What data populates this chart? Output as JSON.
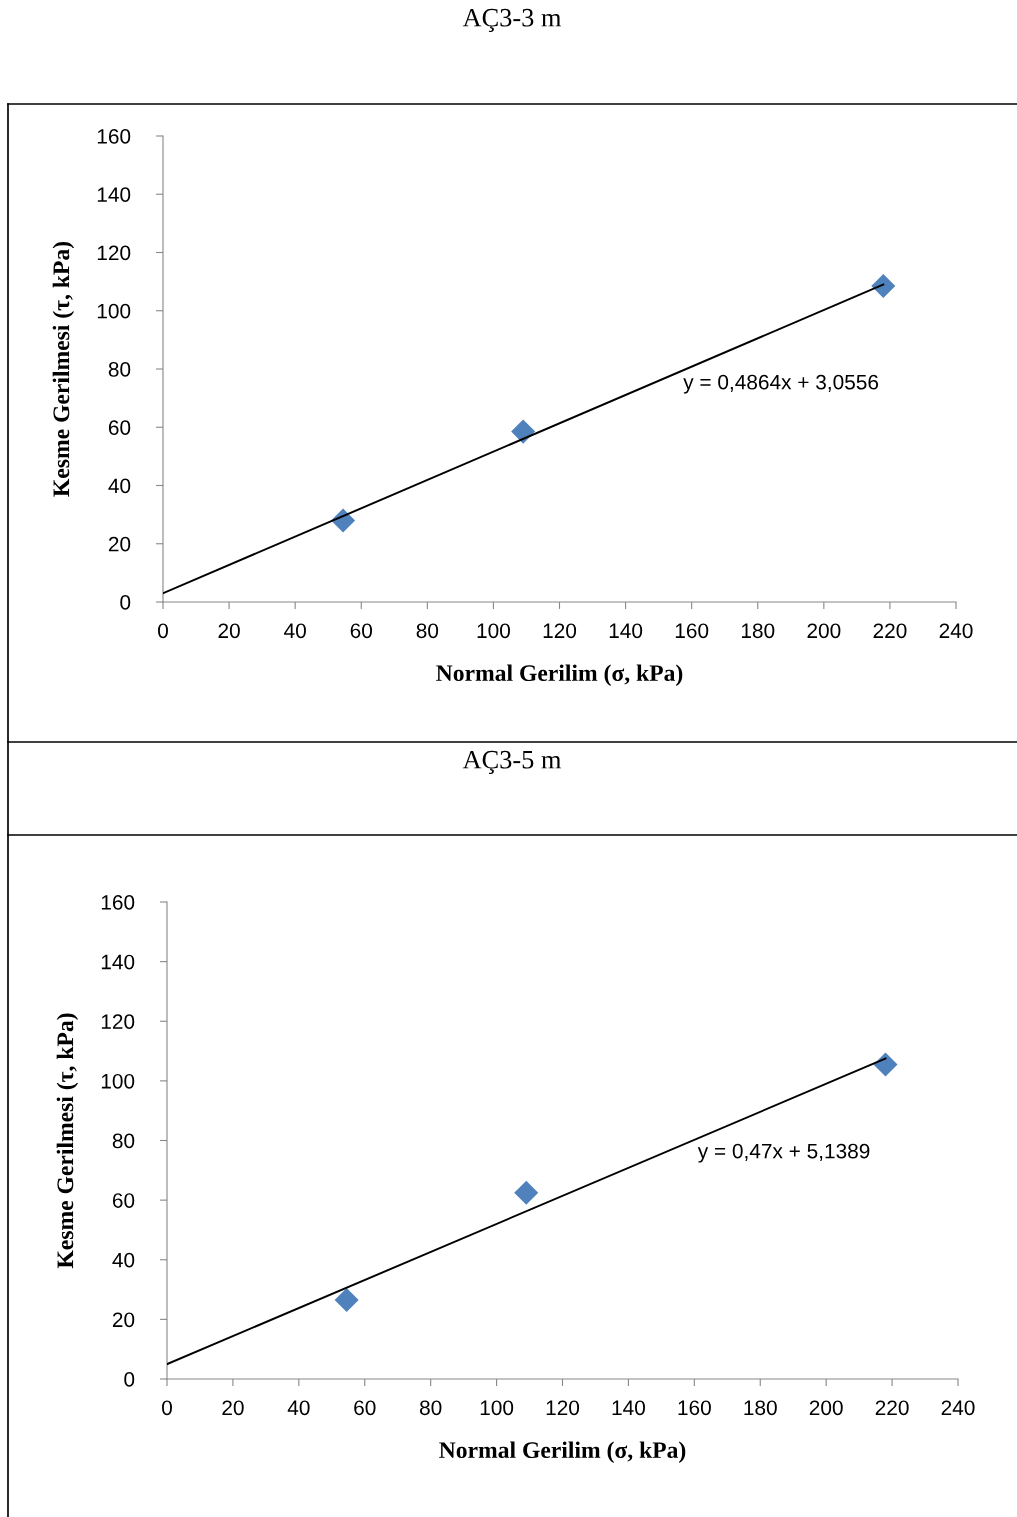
{
  "chart_data": [
    {
      "type": "scatter",
      "title": "AÇ3-3 m",
      "xlabel": "Normal Gerilim (σ, kPa)",
      "ylabel": "Kesme Gerilmesi (τ, kPa)",
      "xlim": [
        0,
        240
      ],
      "ylim": [
        0,
        160
      ],
      "xticks": [
        0,
        20,
        40,
        60,
        80,
        100,
        120,
        140,
        160,
        180,
        200,
        220,
        240
      ],
      "yticks": [
        0,
        20,
        40,
        60,
        80,
        100,
        120,
        140,
        160
      ],
      "grid": false,
      "legend": false,
      "marker": "diamond",
      "series": [
        {
          "type": "scatter",
          "color": "#4f81bd",
          "x": [
            54.5,
            109,
            218
          ],
          "values": [
            28,
            58.5,
            108.5
          ]
        },
        {
          "type": "line",
          "color": "#000000",
          "x": [
            0,
            218
          ],
          "values": [
            3,
            109
          ],
          "line_style": "solid",
          "marker": "none"
        }
      ],
      "annotations": [
        "y = 0,4864x + 3,0556"
      ]
    },
    {
      "type": "scatter",
      "title": "AÇ3-5 m",
      "xlabel": "Normal Gerilim (σ, kPa)",
      "ylabel": "Kesme Gerilmesi (τ, kPa)",
      "xlim": [
        0,
        240
      ],
      "ylim": [
        0,
        160
      ],
      "xticks": [
        0,
        20,
        40,
        60,
        80,
        100,
        120,
        140,
        160,
        180,
        200,
        220,
        240
      ],
      "yticks": [
        0,
        20,
        40,
        60,
        80,
        100,
        120,
        140,
        160
      ],
      "grid": false,
      "legend": false,
      "marker": "diamond",
      "series": [
        {
          "type": "scatter",
          "color": "#4f81bd",
          "x": [
            54.5,
            109,
            218
          ],
          "values": [
            26.5,
            62.5,
            105.5
          ]
        },
        {
          "type": "line",
          "color": "#000000",
          "x": [
            0,
            218
          ],
          "values": [
            5,
            107.5
          ],
          "line_style": "solid",
          "marker": "none"
        }
      ],
      "annotations": [
        "y = 0,47x + 5,1389"
      ]
    }
  ]
}
